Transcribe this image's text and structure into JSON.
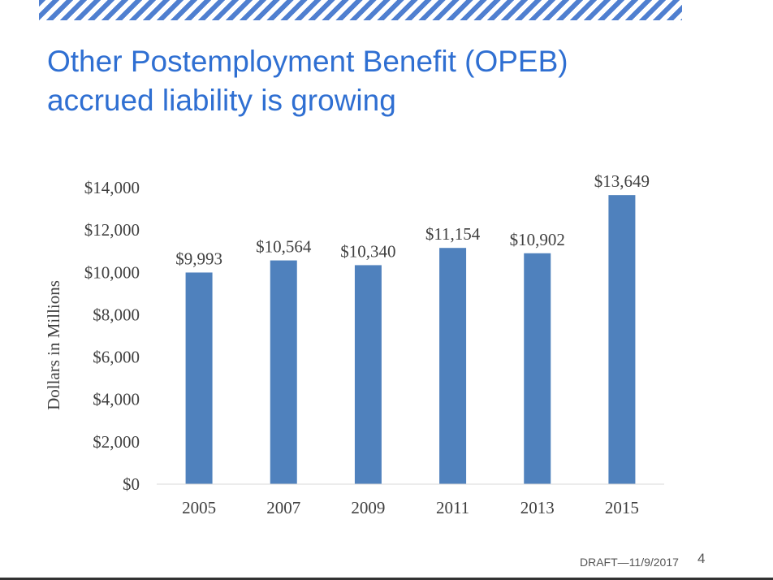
{
  "slide": {
    "title_line_1": "Other Postemployment Benefit (OPEB)",
    "title_line_2": "accrued liability is growing",
    "footer_draft": "DRAFT—11/9/2017",
    "page_number": "4",
    "colors": {
      "title": "#2f6fd2",
      "stripe": "#4f7fd0",
      "bar": "#4f81bd",
      "axis": "#d9d9d9",
      "text": "#404040"
    }
  },
  "chart_data": {
    "type": "bar",
    "title": "",
    "categories": [
      "2005",
      "2007",
      "2009",
      "2011",
      "2013",
      "2015"
    ],
    "values": [
      9993,
      10564,
      10340,
      11154,
      10902,
      13649
    ],
    "data_labels": [
      "$9,993",
      "$10,564",
      "$10,340",
      "$11,154",
      "$10,902",
      "$13,649"
    ],
    "xlabel": "",
    "ylabel": "Dollars in Millions",
    "ylim": [
      0,
      14000
    ],
    "y_ticks": [
      0,
      2000,
      4000,
      6000,
      8000,
      10000,
      12000,
      14000
    ],
    "y_tick_labels": [
      "$0",
      "$2,000",
      "$4,000",
      "$6,000",
      "$8,000",
      "$10,000",
      "$12,000",
      "$14,000"
    ],
    "grid": false,
    "legend": "none"
  }
}
